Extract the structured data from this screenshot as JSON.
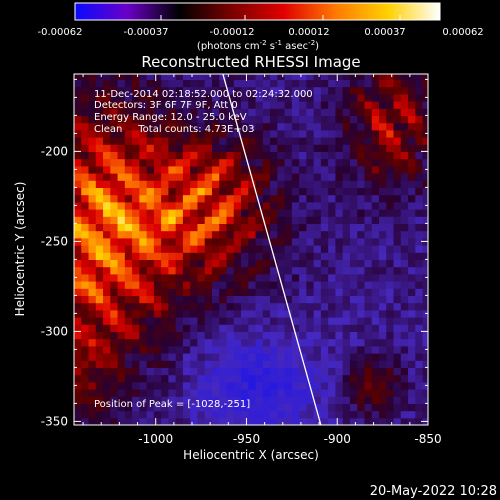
{
  "chart_data": {
    "type": "heatmap",
    "title": "Reconstructed RHESSI Image",
    "xlabel": "Heliocentric X (arcsec)",
    "ylabel": "Heliocentric Y (arcsec)",
    "xlim": [
      -1045,
      -850
    ],
    "ylim": [
      -352,
      -157
    ],
    "xticks": [
      -1000,
      -950,
      -900,
      -850
    ],
    "yticks": [
      -200,
      -250,
      -300,
      -350
    ],
    "colorbar": {
      "range": [
        -0.00062,
        0.00062
      ],
      "ticks": [
        "-0.00062",
        "-0.00037",
        "-0.00012",
        "0.00012",
        "0.00037",
        "0.00062"
      ],
      "unit_text": "(photons cm",
      "unit_sup1": "-2",
      "unit_mid": " s",
      "unit_sup2": "-1",
      "unit_end": " asec",
      "unit_sup3": "-2",
      "unit_close": ")",
      "colormap": [
        "#0a0aff",
        "#6a00c8",
        "#000000",
        "#7a0000",
        "#e00000",
        "#ff7a00",
        "#ffd000",
        "#ffffff"
      ]
    },
    "annotations": {
      "time": "11-Dec-2014 02:18:52.000 to 02:24:32.000",
      "detectors": "Detectors: 3F 6F 7F 9F, Att 0",
      "energy": "Energy Range: 12.0 - 25.0 keV",
      "clean": "Clean     Total counts: 4.73E+03",
      "peak": "Position of Peak = [-1028,-251]"
    },
    "peak": [
      -1028,
      -251
    ],
    "limb": {
      "x1": -963,
      "y1": -157,
      "x2": -909,
      "y2": -352
    },
    "colors": {
      "limb": "#ffffff",
      "axis": "#ffffff",
      "background": "#000000"
    }
  },
  "footer": {
    "timestamp": "20-May-2022 10:28"
  }
}
